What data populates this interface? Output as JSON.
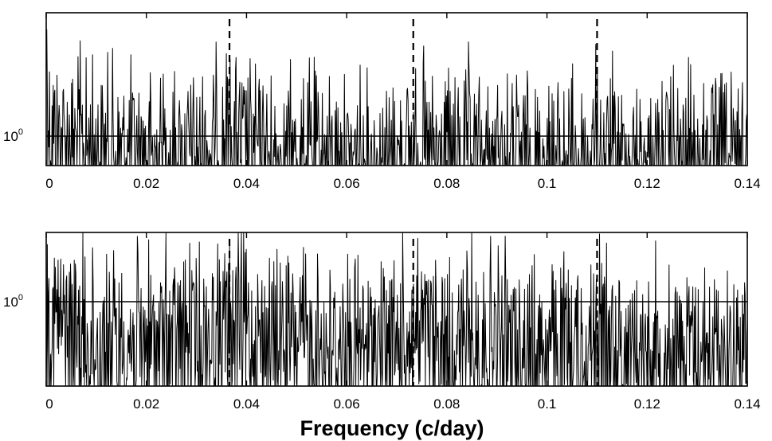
{
  "chart_data": [
    {
      "type": "line",
      "panel": "top",
      "xlabel": "",
      "ylabel": "",
      "xlim": [
        0,
        0.14
      ],
      "x_ticks": [
        "0",
        "0.02",
        "0.04",
        "0.06",
        "0.08",
        "0.1",
        "0.12",
        "0.14"
      ],
      "y_scale": "log",
      "y_tick_base": "10",
      "y_tick_exponent": "0",
      "y_reference_line": 1,
      "dashed_vertical_lines": [
        0.0366,
        0.0733,
        0.11
      ],
      "series_color": "#000000",
      "series": [
        {
          "x": [
            0,
            0.0005,
            0.001,
            0.002,
            0.003,
            0.004,
            0.006,
            0.008,
            0.01,
            0.014,
            0.018,
            0.022,
            0.026,
            0.03,
            0.033,
            0.035,
            0.0366,
            0.0375,
            0.039,
            0.042,
            0.046,
            0.05,
            0.055,
            0.06,
            0.065,
            0.07,
            0.0733,
            0.076,
            0.08,
            0.085,
            0.09,
            0.095,
            0.1,
            0.105,
            0.11,
            0.115,
            0.12,
            0.125,
            0.13,
            0.135,
            0.14
          ],
          "values": [
            12,
            3.2,
            2.6,
            2.3,
            2.1,
            2.0,
            1.9,
            1.8,
            1.7,
            1.6,
            1.5,
            1.5,
            1.45,
            1.5,
            1.6,
            1.9,
            2.4,
            2.0,
            1.7,
            1.5,
            1.4,
            1.35,
            1.35,
            1.3,
            1.3,
            1.35,
            1.6,
            1.35,
            1.3,
            1.3,
            1.3,
            1.3,
            1.3,
            1.3,
            1.45,
            1.3,
            1.25,
            1.25,
            1.25,
            1.25,
            1.25
          ]
        }
      ]
    },
    {
      "type": "line",
      "panel": "bottom",
      "xlabel": "Frequency (c/day)",
      "ylabel": "",
      "xlim": [
        0,
        0.14
      ],
      "x_ticks": [
        "0",
        "0.02",
        "0.04",
        "0.06",
        "0.08",
        "0.1",
        "0.12",
        "0.14"
      ],
      "y_scale": "log",
      "y_tick_base": "10",
      "y_tick_exponent": "0",
      "y_reference_line": 1,
      "dashed_vertical_lines": [
        0.0366,
        0.0733,
        0.11
      ],
      "series_color": "#000000",
      "series": [
        {
          "x": [
            0,
            0.001,
            0.002,
            0.003,
            0.005,
            0.008,
            0.01,
            0.014,
            0.018,
            0.022,
            0.026,
            0.03,
            0.034,
            0.0366,
            0.038,
            0.04,
            0.045,
            0.05,
            0.055,
            0.06,
            0.065,
            0.07,
            0.0733,
            0.076,
            0.08,
            0.085,
            0.09,
            0.095,
            0.1,
            0.105,
            0.11,
            0.115,
            0.12,
            0.125,
            0.13,
            0.135,
            0.14
          ],
          "values": [
            1.9,
            1.8,
            1.6,
            1.45,
            1.25,
            1.1,
            1.05,
            1.0,
            1.0,
            1.0,
            1.05,
            1.1,
            1.2,
            1.5,
            1.35,
            1.2,
            1.05,
            1.0,
            0.95,
            0.95,
            0.9,
            0.95,
            1.3,
            1.05,
            1.0,
            0.95,
            0.95,
            0.9,
            0.9,
            0.9,
            1.05,
            0.9,
            0.85,
            0.85,
            0.85,
            0.85,
            0.85
          ]
        }
      ]
    }
  ]
}
